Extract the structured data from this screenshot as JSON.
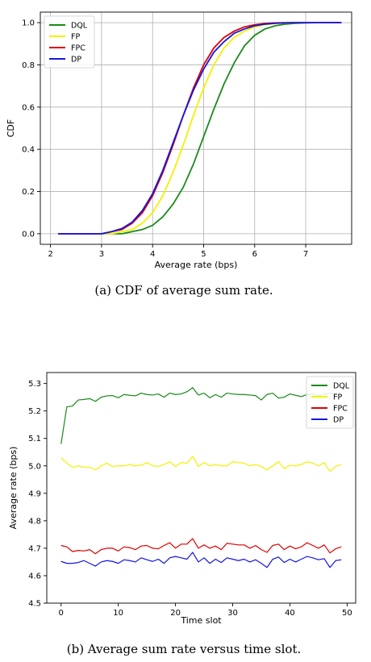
{
  "chart_data": [
    {
      "type": "line",
      "xlabel": "Average rate (bps)",
      "ylabel": "CDF",
      "xlim": [
        1.8,
        7.9
      ],
      "ylim": [
        -0.05,
        1.05
      ],
      "xticks": [
        2,
        3,
        4,
        5,
        6,
        7
      ],
      "yticks": [
        0.0,
        0.2,
        0.4,
        0.6,
        0.8,
        1.0
      ],
      "ytick_labels": [
        "0.0",
        "0.2",
        "0.4",
        "0.6",
        "0.8",
        "1.0"
      ],
      "grid": true,
      "legend": "upper-left",
      "x": [
        2.15,
        2.5,
        2.8,
        3.0,
        3.2,
        3.4,
        3.6,
        3.8,
        4.0,
        4.2,
        4.4,
        4.6,
        4.8,
        5.0,
        5.2,
        5.4,
        5.6,
        5.8,
        6.0,
        6.2,
        6.4,
        6.6,
        6.8,
        7.0,
        7.2,
        7.4,
        7.7
      ],
      "series": [
        {
          "name": "DQL",
          "color": "#1a8a1a",
          "values": [
            0.0,
            0.0,
            0.0,
            0.0,
            0.0,
            0.0,
            0.01,
            0.02,
            0.04,
            0.08,
            0.14,
            0.22,
            0.33,
            0.46,
            0.59,
            0.71,
            0.81,
            0.89,
            0.94,
            0.97,
            0.985,
            0.993,
            0.997,
            0.999,
            1.0,
            1.0,
            1.0
          ]
        },
        {
          "name": "FP",
          "color": "#f2f200",
          "values": [
            0.0,
            0.0,
            0.0,
            0.0,
            0.0,
            0.01,
            0.02,
            0.05,
            0.1,
            0.18,
            0.29,
            0.42,
            0.56,
            0.69,
            0.8,
            0.88,
            0.93,
            0.96,
            0.98,
            0.99,
            0.996,
            0.999,
            1.0,
            1.0,
            1.0,
            1.0,
            1.0
          ]
        },
        {
          "name": "FPC",
          "color": "#e00000",
          "values": [
            0.0,
            0.0,
            0.0,
            0.0,
            0.01,
            0.02,
            0.05,
            0.1,
            0.18,
            0.29,
            0.42,
            0.56,
            0.69,
            0.8,
            0.88,
            0.93,
            0.96,
            0.98,
            0.99,
            0.996,
            0.999,
            1.0,
            1.0,
            1.0,
            1.0,
            1.0,
            1.0
          ]
        },
        {
          "name": "DP",
          "color": "#1515e0",
          "values": [
            0.0,
            0.0,
            0.0,
            0.0,
            0.01,
            0.025,
            0.055,
            0.11,
            0.19,
            0.3,
            0.43,
            0.56,
            0.68,
            0.78,
            0.86,
            0.91,
            0.95,
            0.97,
            0.985,
            0.993,
            0.997,
            0.999,
            1.0,
            1.0,
            1.0,
            1.0,
            1.0
          ]
        }
      ]
    },
    {
      "type": "line",
      "xlabel": "Time slot",
      "ylabel": "Average rate (bps)",
      "xlim": [
        -2.5,
        51.5
      ],
      "ylim": [
        4.5,
        5.34
      ],
      "xticks": [
        0,
        10,
        20,
        30,
        40,
        50
      ],
      "yticks": [
        4.5,
        4.6,
        4.7,
        4.8,
        4.9,
        5.0,
        5.1,
        5.2,
        5.3
      ],
      "ytick_labels": [
        "4.5",
        "4.6",
        "4.7",
        "4.8",
        "4.9",
        "5.0",
        "5.1",
        "5.2",
        "5.3"
      ],
      "grid": false,
      "legend": "upper-right",
      "x": [
        0,
        1,
        2,
        3,
        4,
        5,
        6,
        7,
        8,
        9,
        10,
        11,
        12,
        13,
        14,
        15,
        16,
        17,
        18,
        19,
        20,
        21,
        22,
        23,
        24,
        25,
        26,
        27,
        28,
        29,
        30,
        31,
        32,
        33,
        34,
        35,
        36,
        37,
        38,
        39,
        40,
        41,
        42,
        43,
        44,
        45,
        46,
        47,
        48,
        49
      ],
      "series": [
        {
          "name": "DQL",
          "color": "#1a8a1a",
          "values": [
            5.08,
            5.215,
            5.218,
            5.24,
            5.242,
            5.245,
            5.235,
            5.25,
            5.255,
            5.256,
            5.248,
            5.26,
            5.257,
            5.255,
            5.265,
            5.26,
            5.258,
            5.262,
            5.25,
            5.265,
            5.26,
            5.262,
            5.27,
            5.285,
            5.258,
            5.265,
            5.248,
            5.26,
            5.25,
            5.265,
            5.262,
            5.26,
            5.26,
            5.258,
            5.256,
            5.24,
            5.26,
            5.265,
            5.247,
            5.25,
            5.262,
            5.257,
            5.252,
            5.26,
            5.262,
            5.255,
            5.262,
            5.265,
            5.262,
            5.26
          ]
        },
        {
          "name": "FP",
          "color": "#f2f200",
          "values": [
            5.03,
            5.01,
            4.995,
            5.0,
            4.995,
            4.995,
            4.985,
            5.0,
            5.01,
            4.998,
            5.0,
            5.0,
            5.005,
            5.0,
            5.002,
            5.012,
            5.0,
            4.998,
            5.005,
            5.015,
            4.998,
            5.012,
            5.01,
            5.035,
            4.998,
            5.012,
            5.0,
            5.005,
            5.0,
            5.0,
            5.015,
            5.012,
            5.01,
            5.0,
            5.005,
            4.998,
            4.985,
            5.0,
            5.015,
            4.99,
            5.002,
            5.0,
            5.005,
            5.015,
            5.01,
            5.0,
            5.012,
            4.98,
            4.998,
            5.005
          ]
        },
        {
          "name": "FPC",
          "color": "#e00000",
          "values": [
            4.71,
            4.705,
            4.688,
            4.692,
            4.69,
            4.695,
            4.68,
            4.695,
            4.7,
            4.7,
            4.69,
            4.705,
            4.702,
            4.695,
            4.708,
            4.71,
            4.7,
            4.698,
            4.71,
            4.72,
            4.7,
            4.715,
            4.715,
            4.735,
            4.7,
            4.712,
            4.7,
            4.708,
            4.695,
            4.718,
            4.715,
            4.712,
            4.712,
            4.7,
            4.71,
            4.695,
            4.685,
            4.71,
            4.715,
            4.695,
            4.708,
            4.698,
            4.705,
            4.72,
            4.71,
            4.7,
            4.712,
            4.683,
            4.698,
            4.705
          ]
        },
        {
          "name": "DP",
          "color": "#1515e0",
          "values": [
            4.652,
            4.645,
            4.645,
            4.648,
            4.655,
            4.645,
            4.635,
            4.65,
            4.655,
            4.652,
            4.645,
            4.658,
            4.655,
            4.65,
            4.665,
            4.658,
            4.652,
            4.66,
            4.645,
            4.665,
            4.67,
            4.665,
            4.66,
            4.685,
            4.65,
            4.665,
            4.645,
            4.66,
            4.648,
            4.665,
            4.66,
            4.655,
            4.66,
            4.65,
            4.658,
            4.645,
            4.63,
            4.66,
            4.668,
            4.648,
            4.66,
            4.65,
            4.66,
            4.67,
            4.665,
            4.658,
            4.662,
            4.63,
            4.655,
            4.658
          ]
        }
      ]
    }
  ],
  "captions": {
    "a": "(a) CDF of average sum rate.",
    "b": "(b) Average sum rate versus time slot."
  }
}
